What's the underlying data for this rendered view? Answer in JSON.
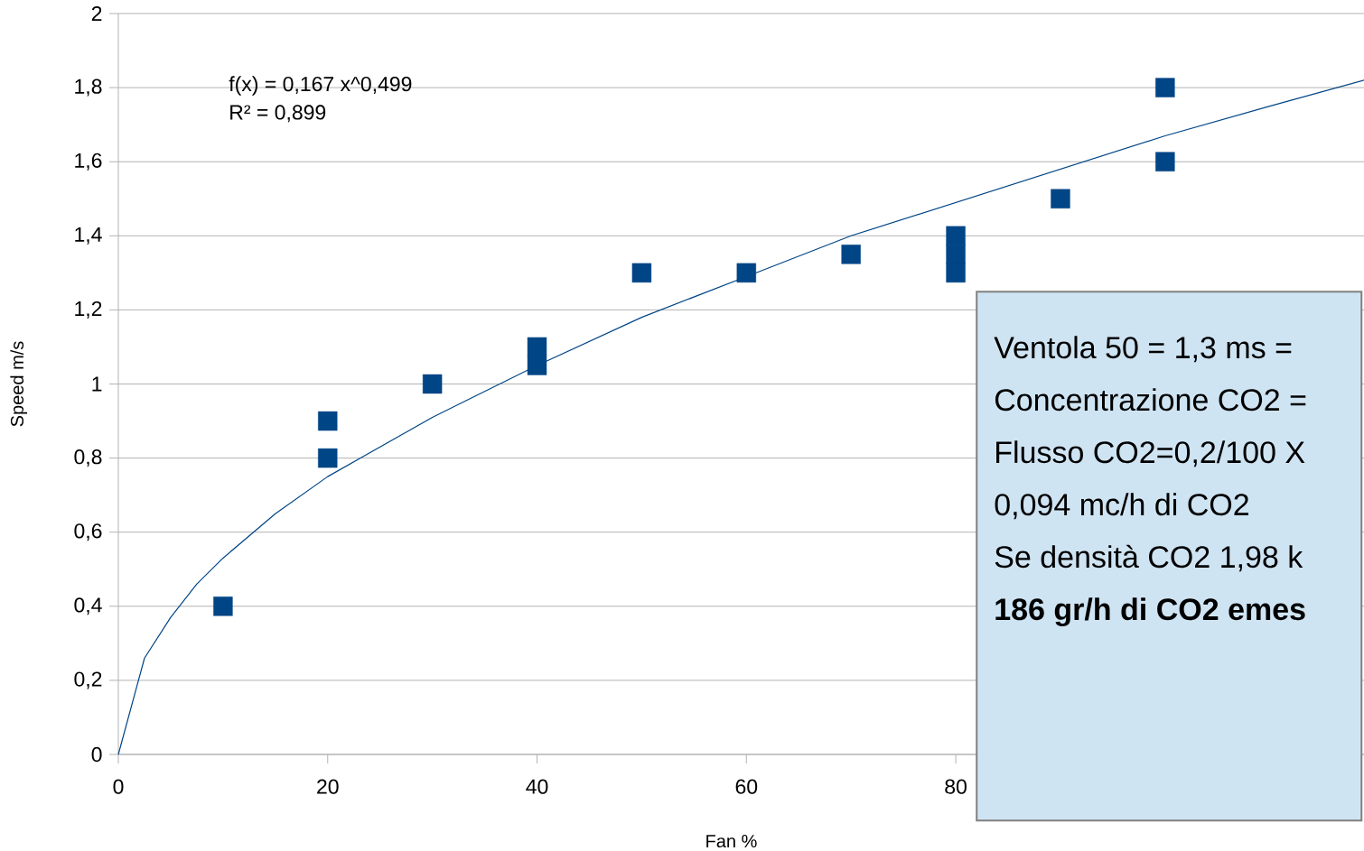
{
  "chart_data": {
    "type": "scatter",
    "xlabel": "Fan %",
    "ylabel": "Speed m/s",
    "annotations": [
      "f(x) = 0,167 x^0,499",
      "R² = 0,899",
      "Ventola 50 = 1,3 ms =",
      "Concentrazione CO2 =",
      "Flusso CO2=0,2/100 X",
      "0,094 mc/h di CO2",
      "Se densità CO2 1,98 k",
      "**186 gr/h di CO2 emes**"
    ],
    "xlim": [
      0,
      119
    ],
    "ylim": [
      0,
      2
    ],
    "xticks": [
      0,
      20,
      40,
      60,
      80
    ],
    "yticks": [
      0,
      {
        "value": 0.2,
        "label": "0,2"
      },
      {
        "value": 0.4,
        "label": "0,4"
      },
      {
        "value": 0.6,
        "label": "0,6"
      },
      {
        "value": 0.8,
        "label": "0,8"
      },
      1,
      {
        "value": 1.2,
        "label": "1,2"
      },
      {
        "value": 1.4,
        "label": "1,4"
      },
      {
        "value": 1.6,
        "label": "1,6"
      },
      {
        "value": 1.8,
        "label": "1,8"
      },
      2
    ],
    "grid": "y",
    "marker": "square",
    "series": [
      {
        "color": "#004586",
        "x": [
          10,
          20,
          20,
          30,
          40,
          40,
          50,
          60,
          70,
          80,
          80,
          80,
          90,
          100,
          100
        ],
        "values": [
          0.4,
          0.9,
          0.8,
          1.0,
          1.1,
          1.05,
          1.3,
          1.3,
          1.35,
          1.4,
          1.35,
          1.3,
          1.5,
          1.8,
          1.6
        ]
      },
      {
        "type": "line",
        "color": "#004586",
        "marker": "none",
        "x": [
          0,
          2.5,
          5,
          7.5,
          10,
          15,
          20,
          30,
          40,
          50,
          60,
          70,
          80,
          90,
          100,
          110,
          119
        ],
        "values": [
          0,
          0.26,
          0.37,
          0.46,
          0.53,
          0.65,
          0.75,
          0.91,
          1.05,
          1.18,
          1.29,
          1.4,
          1.49,
          1.58,
          1.67,
          1.75,
          1.82
        ]
      }
    ]
  }
}
